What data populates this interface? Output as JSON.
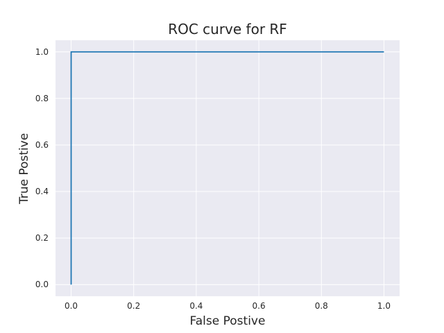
{
  "chart_data": {
    "type": "line",
    "title": "ROC curve for RF",
    "xlabel": "False Postive",
    "ylabel": "True Postive",
    "xlim": [
      -0.05,
      1.05
    ],
    "ylim": [
      -0.05,
      1.05
    ],
    "xticks": [
      0.0,
      0.2,
      0.4,
      0.6,
      0.8,
      1.0
    ],
    "xtick_labels": [
      "0.0",
      "0.2",
      "0.4",
      "0.6",
      "0.8",
      "1.0"
    ],
    "yticks": [
      0.0,
      0.2,
      0.4,
      0.6,
      0.8,
      1.0
    ],
    "ytick_labels": [
      "0.0",
      "0.2",
      "0.4",
      "0.6",
      "0.8",
      "1.0"
    ],
    "grid": true,
    "legend": "none",
    "colors": {
      "background": "#eaeaf2",
      "grid": "#ffffff",
      "line": "#1f77b4"
    },
    "series": [
      {
        "x": [
          0.0,
          0.0,
          1.0
        ],
        "y": [
          0.0,
          1.0,
          1.0
        ]
      }
    ]
  }
}
